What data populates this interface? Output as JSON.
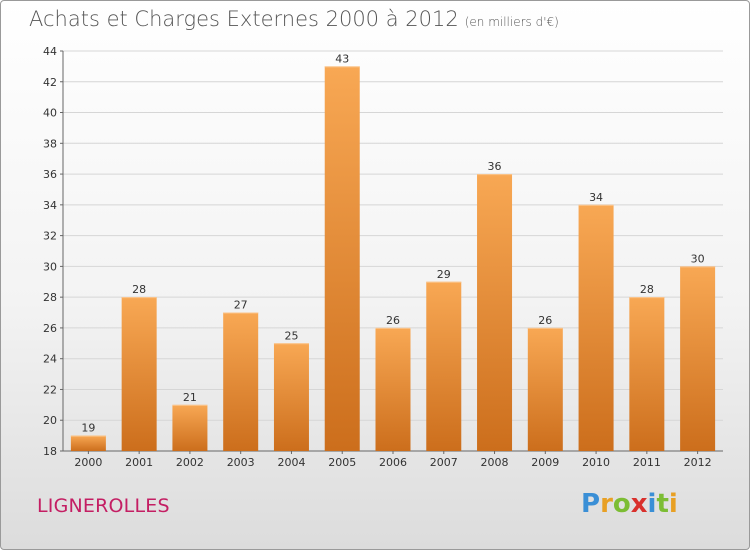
{
  "header": {
    "title": "Achats et Charges Externes 2000 à 2012",
    "unit": "(en milliers d'€)"
  },
  "footer": {
    "city": "LIGNEROLLES",
    "logo_letters": [
      "P",
      "r",
      "o",
      "x",
      "i",
      "t",
      "i"
    ],
    "logo_colors": [
      "#3a8fd6",
      "#e8a024",
      "#7cbd34",
      "#d9302c",
      "#3a8fd6",
      "#7cbd34",
      "#e8a024"
    ]
  },
  "colors": {
    "bar_top": "#f8a854",
    "bar_bottom": "#cc6e1c",
    "city": "#c41e63",
    "grid": "#d6d6d6"
  },
  "chart_data": {
    "type": "bar",
    "title": "Achats et Charges Externes 2000 à 2012",
    "subtitle": "(en milliers d'€)",
    "categories": [
      "2000",
      "2001",
      "2002",
      "2003",
      "2004",
      "2005",
      "2006",
      "2007",
      "2008",
      "2009",
      "2010",
      "2011",
      "2012"
    ],
    "values": [
      19,
      28,
      21,
      27,
      25,
      43,
      26,
      29,
      36,
      26,
      34,
      28,
      30
    ],
    "ylim": [
      18,
      44
    ],
    "yticks": [
      18,
      20,
      22,
      24,
      26,
      28,
      30,
      32,
      34,
      36,
      38,
      40,
      42,
      44
    ],
    "grid": true,
    "legend": "none"
  }
}
